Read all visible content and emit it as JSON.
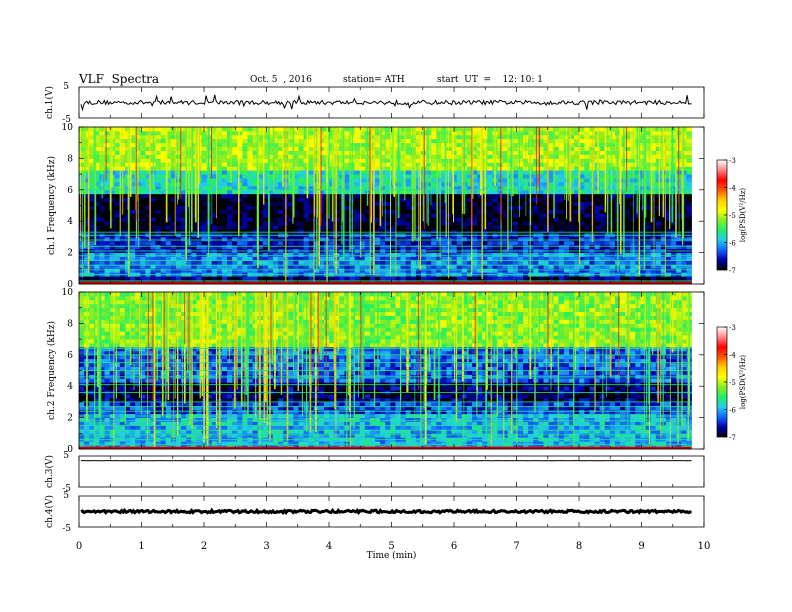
{
  "header": {
    "title": "VLF  Spectra",
    "date": "Oct. 5  , 2016",
    "station": "station= ATH",
    "start_ut": "start  UT  =    12: 10: 1"
  },
  "colorscale": {
    "label": "log(PSD(V²/Hz)",
    "ticks": [
      "-3",
      "-4",
      "-5",
      "-6",
      "-7"
    ],
    "stops": [
      "#000000",
      "#0000aa",
      "#1466ff",
      "#22ccee",
      "#22ee66",
      "#88ee22",
      "#ffff00",
      "#ffcc00",
      "#ff5500",
      "#ff0000",
      "#ff8888",
      "#ffffff"
    ]
  },
  "chart_data": {
    "type": "heatmap",
    "xlabel": "Time  (min)",
    "x_ticks": [
      "0",
      "1",
      "2",
      "3",
      "4",
      "5",
      "6",
      "7",
      "8",
      "9",
      "10"
    ],
    "xlim": [
      0,
      10
    ],
    "data_extent_min": 9.8,
    "panels": [
      {
        "kind": "timeseries",
        "ylabel": "ch.1(V)",
        "ylim": [
          -5,
          5
        ],
        "y_ticks": [
          "5",
          "-5"
        ],
        "baseline": 0,
        "amplitude": 0.7
      },
      {
        "kind": "spectrogram",
        "ylabel": "ch.1 Frequency  (kHz)",
        "ylim": [
          0,
          10
        ],
        "y_ticks": [
          "0",
          "2",
          "4",
          "6",
          "8",
          "10"
        ],
        "bands_khz": [
          {
            "from": 0,
            "to": 0.4,
            "log_psd": -6.8
          },
          {
            "from": 0.4,
            "to": 2.0,
            "log_psd": -6.2
          },
          {
            "from": 2.0,
            "to": 3.2,
            "log_psd": -6.5
          },
          {
            "from": 3.2,
            "to": 5.8,
            "log_psd": -6.95
          },
          {
            "from": 5.8,
            "to": 7.2,
            "log_psd": -5.8
          },
          {
            "from": 7.2,
            "to": 10,
            "log_psd": -5.1
          }
        ],
        "lines_khz": [
          0.1,
          0.2,
          0.6,
          0.9,
          1.2,
          1.5,
          1.8,
          2.1,
          2.4,
          2.8,
          3.1,
          3.3,
          6.0
        ],
        "strong_line_khz": 0.05
      },
      {
        "kind": "spectrogram",
        "ylabel": "ch.2 Frequency  (kHz)",
        "ylim": [
          0,
          10
        ],
        "y_ticks": [
          "0",
          "2",
          "4",
          "6",
          "8",
          "10"
        ],
        "bands_khz": [
          {
            "from": 0,
            "to": 2.2,
            "log_psd": -6.0
          },
          {
            "from": 2.2,
            "to": 3.0,
            "log_psd": -6.4
          },
          {
            "from": 3.0,
            "to": 4.2,
            "log_psd": -6.8
          },
          {
            "from": 4.2,
            "to": 6.5,
            "log_psd": -6.3
          },
          {
            "from": 6.5,
            "to": 10,
            "log_psd": -5.2
          }
        ],
        "lines_khz": [
          0.3,
          0.6,
          0.9,
          1.2,
          1.5,
          1.8,
          2.1,
          2.4,
          2.7,
          3.0,
          3.6,
          4.1,
          4.6,
          5.0,
          5.5,
          6.0,
          6.4
        ],
        "strong_line_khz": 0.05
      },
      {
        "kind": "timeseries",
        "ylabel": "ch.3(V)",
        "ylim": [
          -5,
          5
        ],
        "y_ticks": [
          "5",
          "-5"
        ],
        "baseline": 3.5,
        "amplitude": 0.02
      },
      {
        "kind": "timeseries",
        "ylabel": "ch.4(V)",
        "ylim": [
          -5,
          5
        ],
        "y_ticks": [
          "5",
          "-5"
        ],
        "baseline": 0,
        "amplitude": 0.4
      }
    ]
  }
}
